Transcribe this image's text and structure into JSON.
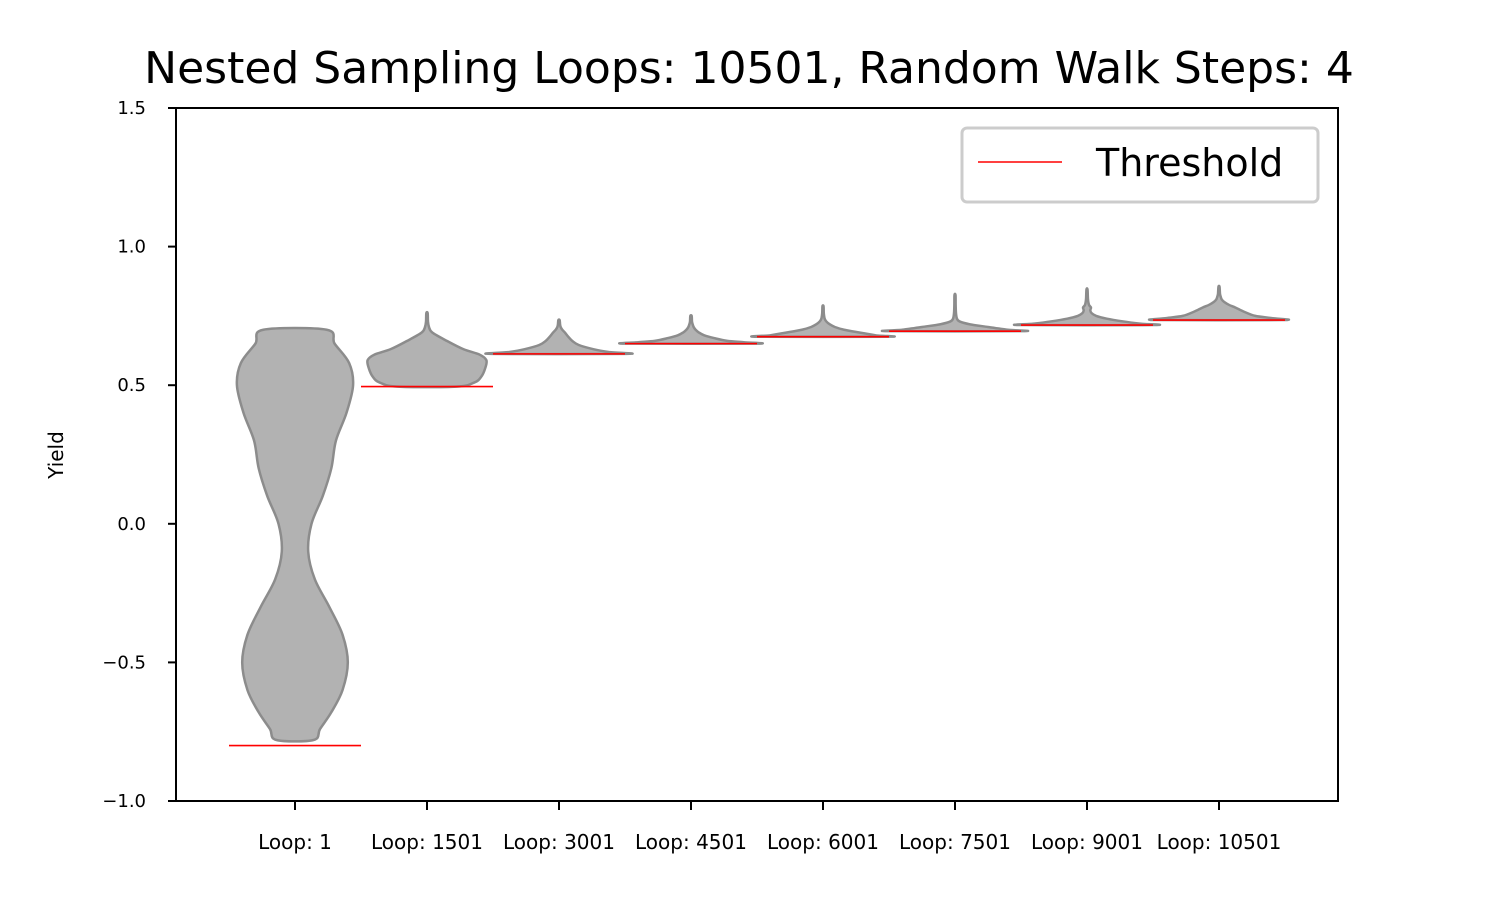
{
  "chart_data": {
    "type": "violin",
    "title": "Nested Sampling Loops: 10501, Random Walk Steps: 4",
    "xlabel": "",
    "ylabel": "Yield",
    "ylim": [
      -1.0,
      1.5
    ],
    "yticks": [
      -1.0,
      -0.5,
      0.0,
      0.5,
      1.0,
      1.5
    ],
    "ytick_labels": [
      "−1.0",
      "−0.5",
      "0.0",
      "0.5",
      "1.0",
      "1.5"
    ],
    "grid": false,
    "legend": {
      "placement": "top-right",
      "entries": [
        {
          "label": "Threshold",
          "color": "#ff0000"
        }
      ]
    },
    "colors": {
      "violin_fill": "#b2b2b2",
      "violin_edge": "#8c8c8c",
      "threshold": "#ff0000"
    },
    "categories": [
      "Loop: 1",
      "Loop: 1501",
      "Loop: 3001",
      "Loop: 4501",
      "Loop: 6001",
      "Loop: 7501",
      "Loop: 9001",
      "Loop: 10501"
    ],
    "violins": [
      {
        "category": "Loop: 1",
        "threshold": -0.8,
        "min": -0.78,
        "max": 0.7,
        "profile": [
          [
            -0.78,
            0.28
          ],
          [
            -0.74,
            0.38
          ],
          [
            -0.68,
            0.55
          ],
          [
            -0.6,
            0.72
          ],
          [
            -0.5,
            0.8
          ],
          [
            -0.4,
            0.72
          ],
          [
            -0.3,
            0.52
          ],
          [
            -0.2,
            0.3
          ],
          [
            -0.1,
            0.2
          ],
          [
            0.0,
            0.25
          ],
          [
            0.1,
            0.42
          ],
          [
            0.2,
            0.55
          ],
          [
            0.3,
            0.62
          ],
          [
            0.4,
            0.78
          ],
          [
            0.5,
            0.88
          ],
          [
            0.58,
            0.82
          ],
          [
            0.65,
            0.6
          ],
          [
            0.7,
            0.48
          ]
        ]
      },
      {
        "category": "Loop: 1501",
        "threshold": 0.495,
        "min": 0.495,
        "max": 0.76,
        "profile": [
          [
            0.495,
            0.45
          ],
          [
            0.51,
            0.72
          ],
          [
            0.53,
            0.82
          ],
          [
            0.56,
            0.88
          ],
          [
            0.59,
            0.9
          ],
          [
            0.61,
            0.8
          ],
          [
            0.63,
            0.55
          ],
          [
            0.66,
            0.3
          ],
          [
            0.69,
            0.08
          ],
          [
            0.71,
            0.03
          ],
          [
            0.73,
            0.015
          ],
          [
            0.76,
            0.01
          ]
        ]
      },
      {
        "category": "Loop: 3001",
        "threshold": 0.613,
        "min": 0.613,
        "max": 0.735,
        "profile": [
          [
            0.613,
            1.02
          ],
          [
            0.62,
            0.75
          ],
          [
            0.63,
            0.52
          ],
          [
            0.645,
            0.3
          ],
          [
            0.66,
            0.2
          ],
          [
            0.675,
            0.14
          ],
          [
            0.69,
            0.09
          ],
          [
            0.7,
            0.05
          ],
          [
            0.71,
            0.025
          ],
          [
            0.72,
            0.016
          ],
          [
            0.735,
            0.01
          ]
        ]
      },
      {
        "category": "Loop: 4501",
        "threshold": 0.65,
        "min": 0.65,
        "max": 0.75,
        "profile": [
          [
            0.65,
            0.98
          ],
          [
            0.655,
            0.8
          ],
          [
            0.66,
            0.55
          ],
          [
            0.67,
            0.35
          ],
          [
            0.68,
            0.2
          ],
          [
            0.69,
            0.12
          ],
          [
            0.7,
            0.07
          ],
          [
            0.71,
            0.04
          ],
          [
            0.72,
            0.025
          ],
          [
            0.73,
            0.015
          ],
          [
            0.75,
            0.01
          ]
        ]
      },
      {
        "category": "Loop: 6001",
        "threshold": 0.675,
        "min": 0.675,
        "max": 0.785,
        "profile": [
          [
            0.675,
            0.98
          ],
          [
            0.68,
            0.8
          ],
          [
            0.69,
            0.55
          ],
          [
            0.7,
            0.32
          ],
          [
            0.71,
            0.18
          ],
          [
            0.72,
            0.1
          ],
          [
            0.73,
            0.05
          ],
          [
            0.74,
            0.025
          ],
          [
            0.76,
            0.012
          ],
          [
            0.785,
            0.008
          ]
        ]
      },
      {
        "category": "Loop: 7501",
        "threshold": 0.695,
        "min": 0.695,
        "max": 0.825,
        "profile": [
          [
            0.695,
            1.0
          ],
          [
            0.7,
            0.8
          ],
          [
            0.71,
            0.5
          ],
          [
            0.72,
            0.22
          ],
          [
            0.73,
            0.07
          ],
          [
            0.74,
            0.03
          ],
          [
            0.76,
            0.015
          ],
          [
            0.79,
            0.01
          ],
          [
            0.825,
            0.008
          ]
        ]
      },
      {
        "category": "Loop: 9001",
        "threshold": 0.717,
        "min": 0.717,
        "max": 0.845,
        "profile": [
          [
            0.717,
            1.0
          ],
          [
            0.722,
            0.8
          ],
          [
            0.73,
            0.55
          ],
          [
            0.74,
            0.3
          ],
          [
            0.75,
            0.14
          ],
          [
            0.76,
            0.07
          ],
          [
            0.77,
            0.05
          ],
          [
            0.78,
            0.06
          ],
          [
            0.79,
            0.03
          ],
          [
            0.81,
            0.015
          ],
          [
            0.845,
            0.008
          ]
        ]
      },
      {
        "category": "Loop: 10501",
        "threshold": 0.735,
        "min": 0.735,
        "max": 0.855,
        "profile": [
          [
            0.735,
            0.95
          ],
          [
            0.742,
            0.8
          ],
          [
            0.75,
            0.55
          ],
          [
            0.765,
            0.38
          ],
          [
            0.78,
            0.25
          ],
          [
            0.79,
            0.15
          ],
          [
            0.8,
            0.08
          ],
          [
            0.81,
            0.04
          ],
          [
            0.82,
            0.025
          ],
          [
            0.83,
            0.015
          ],
          [
            0.855,
            0.008
          ]
        ]
      }
    ]
  }
}
